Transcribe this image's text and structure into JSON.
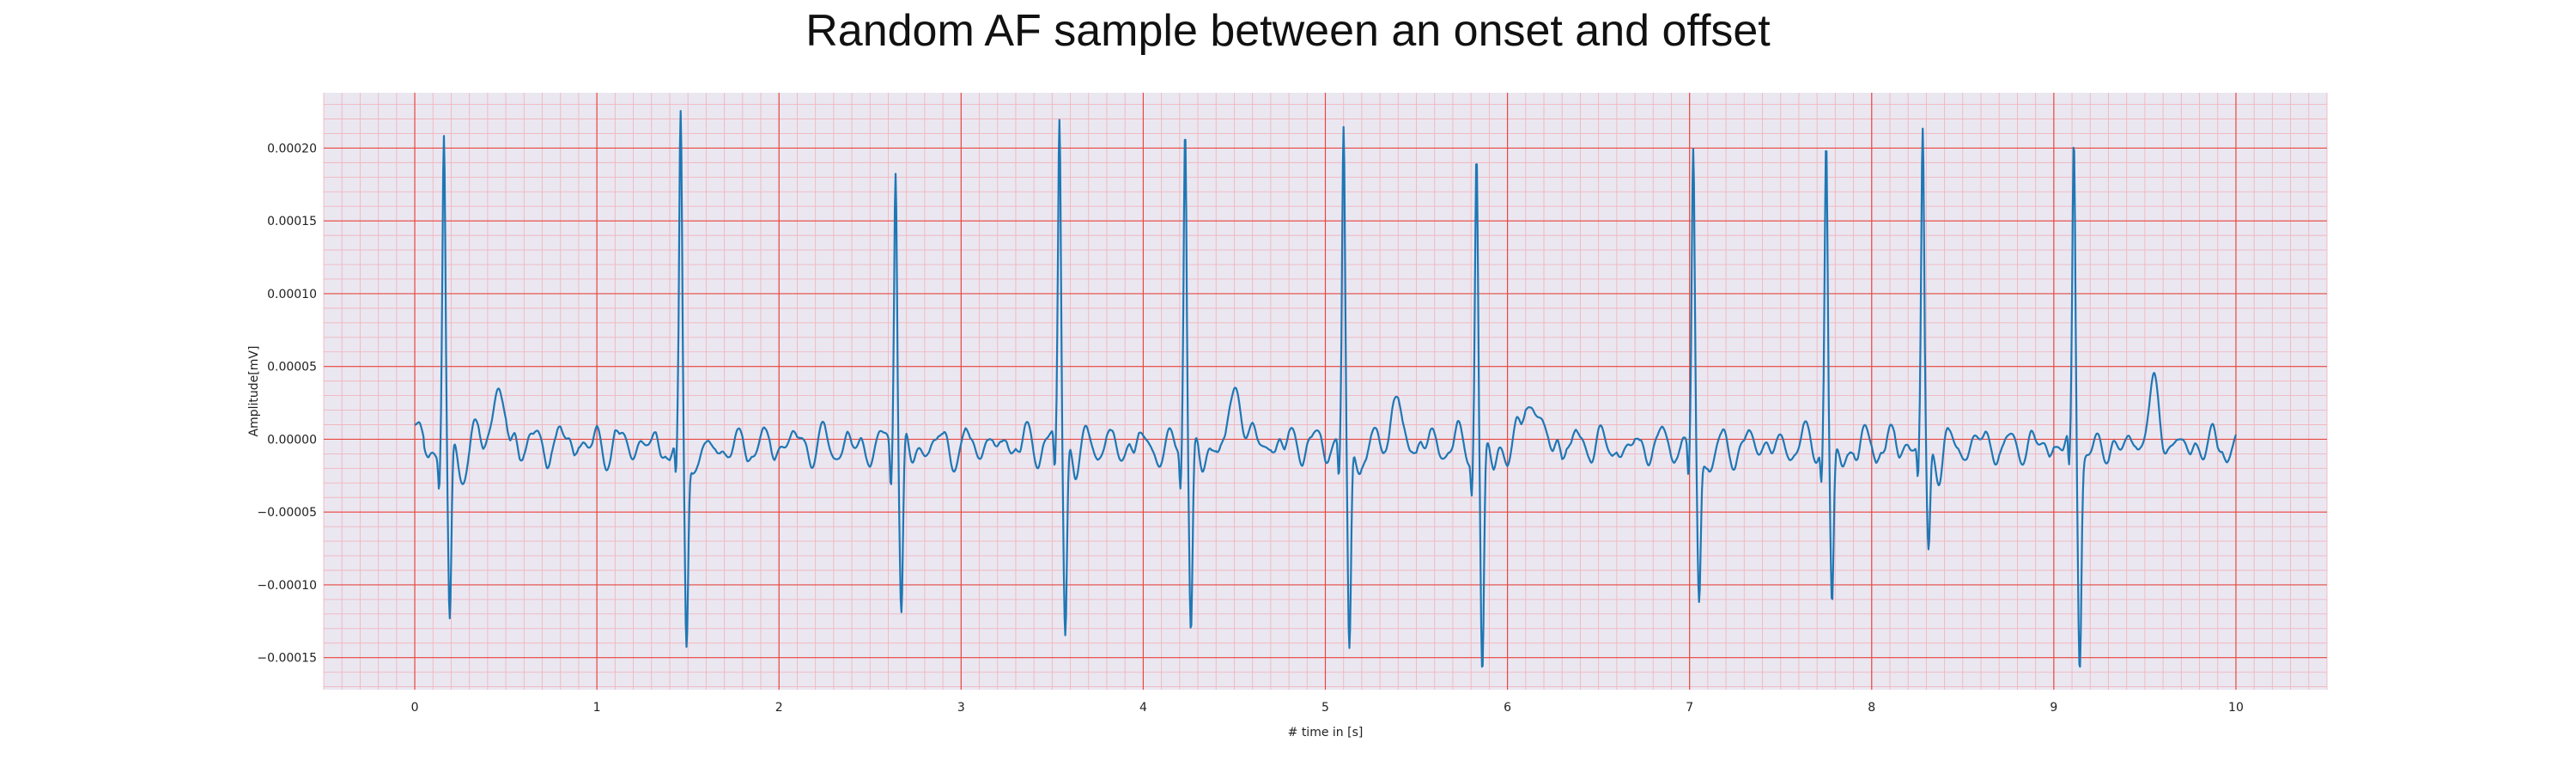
{
  "chart_data": {
    "type": "line",
    "title": "Random AF sample between an onset and offset",
    "xlabel": "# time in [s]",
    "ylabel": "Amplitude[mV]",
    "xlim": [
      -0.5,
      10.5
    ],
    "ylim": [
      -0.000172,
      0.000238
    ],
    "x_ticks": [
      0,
      1,
      2,
      3,
      4,
      5,
      6,
      7,
      8,
      9,
      10
    ],
    "y_ticks": [
      -0.00015,
      -0.0001,
      -5e-05,
      0.0,
      5e-05,
      0.0001,
      0.00015,
      0.0002
    ],
    "y_tick_labels": [
      "−0.00015",
      "−0.00010",
      "−0.00005",
      "0.00000",
      "0.00005",
      "0.00010",
      "0.00015",
      "0.00020"
    ],
    "grid": true,
    "minor_grid": true,
    "legend": "none",
    "colors": {
      "line": "#1f77b4",
      "plot_background": "#eae7f1",
      "major_grid": "#e8483f",
      "minor_grid": "#f1b6bd"
    },
    "series": [
      {
        "sampling": "10 s trace, 250 Hz; R-peak times and amplitudes read from the plot",
        "beats": [
          {
            "t": 0.16,
            "peak": 0.000202,
            "trough": -0.000124
          },
          {
            "t": 1.46,
            "peak": 0.00021,
            "trough": -0.000133
          },
          {
            "t": 2.64,
            "peak": 0.000196,
            "trough": -0.000108
          },
          {
            "t": 3.54,
            "peak": 0.000216,
            "trough": -0.000125
          },
          {
            "t": 4.23,
            "peak": 0.000221,
            "trough": -0.000124
          },
          {
            "t": 5.1,
            "peak": 0.000208,
            "trough": -0.000141
          },
          {
            "t": 5.83,
            "peak": 0.000195,
            "trough": -0.000153
          },
          {
            "t": 7.02,
            "peak": 0.000194,
            "trough": -0.000101
          },
          {
            "t": 7.75,
            "peak": 0.000198,
            "trough": -0.00011
          },
          {
            "t": 8.28,
            "peak": 0.000204,
            "trough": -7.4e-05
          },
          {
            "t": 9.11,
            "peak": 0.0002,
            "trough": -0.000136
          }
        ],
        "baseline_waves": [
          {
            "t": 0.45,
            "amp": 3.8e-05
          },
          {
            "t": 4.52,
            "amp": 3.5e-05
          },
          {
            "t": 5.38,
            "amp": 2.6e-05
          },
          {
            "t": 6.13,
            "amp": 3.8e-05
          },
          {
            "t": 9.55,
            "amp": 3.4e-05
          }
        ]
      }
    ]
  }
}
